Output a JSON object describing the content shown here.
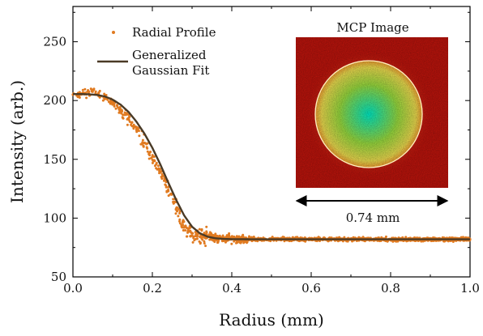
{
  "chart_data": {
    "type": "scatter",
    "xlabel": "Radius (mm)",
    "ylabel": "Intensity (arb.)",
    "xlim": [
      0,
      1.0
    ],
    "ylim": [
      50,
      280
    ],
    "x_ticks": [
      {
        "value": 0.0,
        "label": "0.0"
      },
      {
        "value": 0.2,
        "label": "0.2"
      },
      {
        "value": 0.4,
        "label": "0.4"
      },
      {
        "value": 0.6,
        "label": "0.6"
      },
      {
        "value": 0.8,
        "label": "0.8"
      },
      {
        "value": 1.0,
        "label": "1.0"
      }
    ],
    "y_ticks": [
      {
        "value": 50,
        "label": "50"
      },
      {
        "value": 100,
        "label": "100"
      },
      {
        "value": 150,
        "label": "150"
      },
      {
        "value": 200,
        "label": "200"
      },
      {
        "value": 250,
        "label": "250"
      }
    ],
    "grid": false,
    "legend_position": "top-left",
    "series": [
      {
        "name": "Radial Profile",
        "kind": "scatter",
        "color": "#e07a20",
        "x": [
          0.0,
          0.02,
          0.04,
          0.05,
          0.06,
          0.08,
          0.1,
          0.12,
          0.14,
          0.16,
          0.18,
          0.2,
          0.22,
          0.24,
          0.26,
          0.28,
          0.3,
          0.32,
          0.34,
          0.36,
          0.38,
          0.4,
          0.45,
          0.5,
          0.55,
          0.6,
          0.65,
          0.7,
          0.75,
          0.8,
          0.85,
          0.9,
          0.95,
          1.0
        ],
        "y": [
          205,
          206,
          206,
          209,
          205,
          203,
          198,
          192,
          185,
          175,
          164,
          152,
          139,
          124,
          108,
          92,
          85,
          84,
          85,
          83,
          83,
          82,
          82,
          82,
          82,
          82,
          82,
          82,
          82,
          82,
          82,
          82,
          82,
          82
        ]
      },
      {
        "name": "Generalized Gaussian Fit",
        "legend_label_lines": [
          "Generalized",
          "Gaussian Fit"
        ],
        "kind": "line",
        "color": "#4a3a26",
        "x": [
          0.0,
          0.02,
          0.04,
          0.06,
          0.08,
          0.1,
          0.12,
          0.14,
          0.16,
          0.18,
          0.2,
          0.22,
          0.24,
          0.26,
          0.28,
          0.3,
          0.32,
          0.34,
          0.36,
          0.38,
          0.4,
          0.45,
          0.5,
          0.6,
          0.7,
          0.8,
          0.9,
          1.0
        ],
        "y": [
          205.5,
          205.5,
          205.3,
          204.8,
          203.5,
          200.8,
          196.5,
          190.3,
          182.0,
          171.9,
          159.8,
          145.7,
          130.3,
          115.5,
          102.3,
          92.7,
          87.0,
          84.1,
          82.8,
          82.3,
          82.1,
          82.0,
          82.0,
          82.0,
          82.0,
          82.0,
          82.0,
          82.0
        ]
      }
    ],
    "inset": {
      "title": "MCP Image",
      "caption": "0.74 mm",
      "background_color": "#c0140c",
      "ring_color": "#fff2c0",
      "center_color": "#00f0c8",
      "mid_color": "#9ce040"
    }
  }
}
